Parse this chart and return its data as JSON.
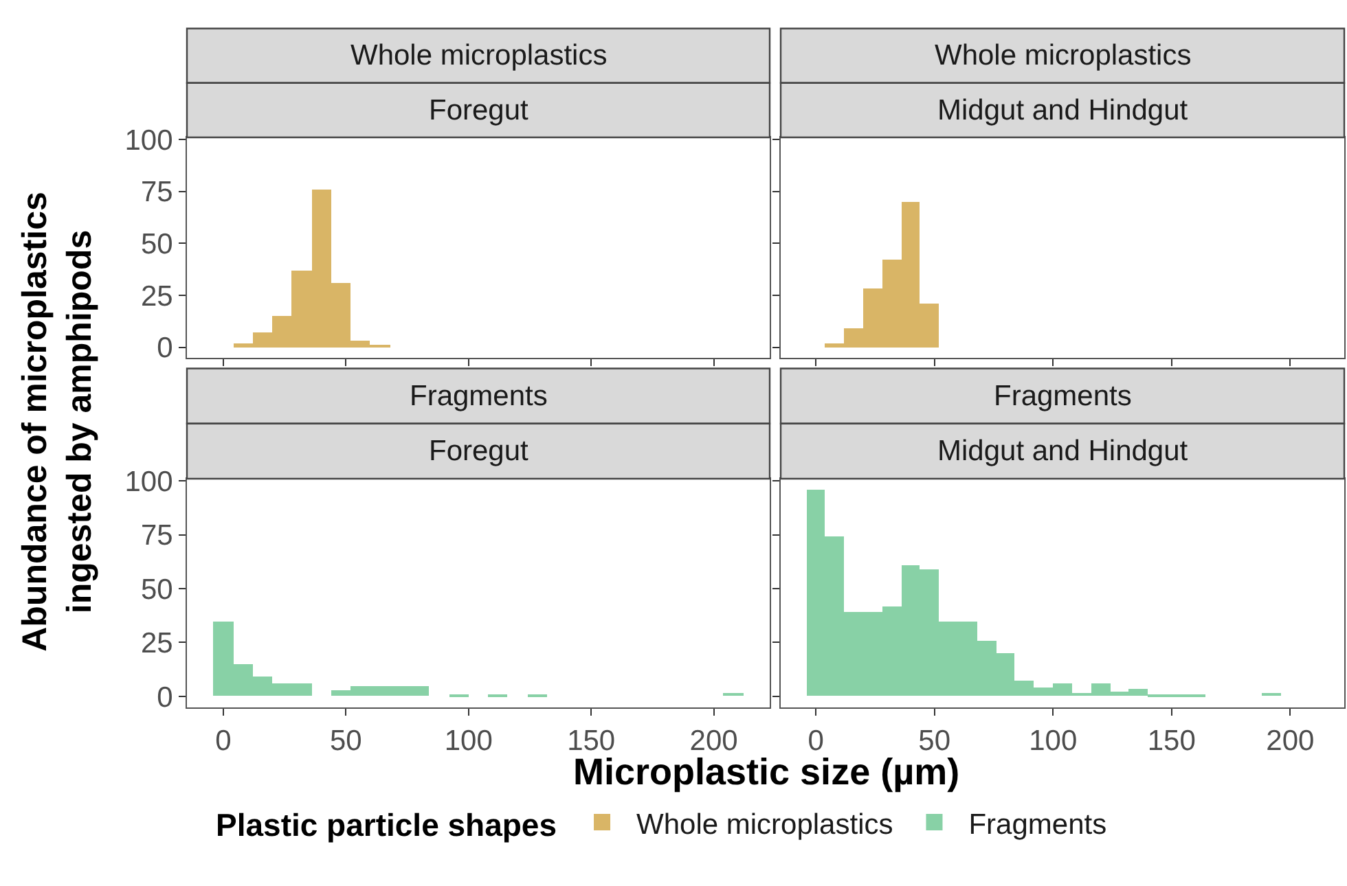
{
  "chart_data": [
    {
      "type": "histogram",
      "title": "Whole microplastics",
      "subtitle": "Foregut",
      "ylabel": "Abundance of microplastics\ningested by amphipods",
      "bins": [
        -4,
        4,
        12,
        20,
        28,
        36,
        44,
        52,
        60,
        68,
        76,
        84,
        92,
        100,
        108,
        116,
        124,
        132,
        140,
        148,
        156,
        164,
        172,
        180,
        188,
        196,
        204,
        212
      ],
      "series": [
        {
          "name": "Whole microplastics",
          "color": "#d9b566",
          "values": [
            0,
            2,
            7,
            15,
            37,
            76,
            31,
            3,
            1,
            0,
            0,
            0,
            0,
            0,
            0,
            0,
            0,
            0,
            0,
            0,
            0,
            0,
            0,
            0,
            0,
            0,
            0
          ]
        }
      ],
      "xlim": [
        -14.8,
        222.8
      ],
      "ylim": [
        -5,
        101
      ],
      "xticks": [
        0,
        50,
        100,
        150,
        200
      ],
      "yticks": [
        0,
        25,
        50,
        75,
        100
      ],
      "tick_labels": "y"
    },
    {
      "type": "histogram",
      "title": "Whole microplastics",
      "subtitle": "Midgut and Hindgut",
      "bins": [
        -4,
        4,
        12,
        20,
        28,
        36,
        44,
        52,
        60,
        68,
        76,
        84,
        92,
        100,
        108,
        116,
        124,
        132,
        140,
        148,
        156,
        164,
        172,
        180,
        188,
        196,
        204,
        212
      ],
      "series": [
        {
          "color": "#d9b566",
          "values": [
            0,
            2,
            9,
            28,
            42,
            70,
            21,
            0,
            0,
            0,
            0,
            0,
            0,
            0,
            0,
            0,
            0,
            0,
            0,
            0,
            0,
            0,
            0,
            0,
            0,
            0,
            0
          ]
        }
      ],
      "xlim": [
        -14.8,
        222.8
      ],
      "ylim": [
        -5,
        101
      ],
      "xticks": [
        0,
        50,
        100,
        150,
        200
      ],
      "yticks": [
        0,
        25,
        50,
        75,
        100
      ],
      "tick_labels": false
    },
    {
      "type": "histogram",
      "title": "Fragments",
      "subtitle": "Foregut",
      "xlabel": "Microplastic size (µm)",
      "legend_title": "Plastic particle shapes",
      "legend": "bottom",
      "bins": [
        -4,
        4,
        12,
        20,
        28,
        36,
        44,
        52,
        60,
        68,
        76,
        84,
        92,
        100,
        108,
        116,
        124,
        132,
        140,
        148,
        156,
        164,
        172,
        180,
        188,
        196,
        204,
        212
      ],
      "series": [
        {
          "name": "Fragments",
          "color": "#88d1a6",
          "values": [
            35,
            15,
            9,
            6,
            6,
            0,
            3,
            4.5,
            4.5,
            4.5,
            4.5,
            0,
            1,
            0,
            1,
            0,
            1,
            0,
            0,
            0,
            0,
            0,
            0,
            0,
            0,
            0,
            1.5
          ]
        }
      ],
      "xlim": [
        -14.8,
        222.8
      ],
      "ylim": [
        -5,
        101
      ],
      "xticks": [
        0,
        50,
        100,
        150,
        200
      ],
      "yticks": [
        0,
        25,
        50,
        75,
        100
      ]
    },
    {
      "type": "histogram",
      "title": "Fragments",
      "subtitle": "Midgut and Hindgut",
      "bins": [
        -4,
        4,
        12,
        20,
        28,
        36,
        44,
        52,
        60,
        68,
        76,
        84,
        92,
        100,
        108,
        116,
        124,
        132,
        140,
        148,
        156,
        164,
        172,
        180,
        188,
        196,
        204,
        212
      ],
      "series": [
        {
          "color": "#88d1a6",
          "values": [
            96,
            74,
            39,
            39,
            42,
            61,
            59,
            35,
            35,
            26,
            20,
            7,
            4,
            6,
            1.5,
            6,
            2.5,
            3.5,
            1,
            1,
            1,
            0,
            0,
            0,
            1.5,
            0,
            0
          ]
        }
      ],
      "xlim": [
        -14.8,
        222.8
      ],
      "ylim": [
        -5,
        101
      ],
      "xticks": [
        0,
        50,
        100,
        150,
        200
      ],
      "yticks": [
        0,
        25,
        50,
        75,
        100
      ],
      "tick_labels": "x"
    }
  ]
}
